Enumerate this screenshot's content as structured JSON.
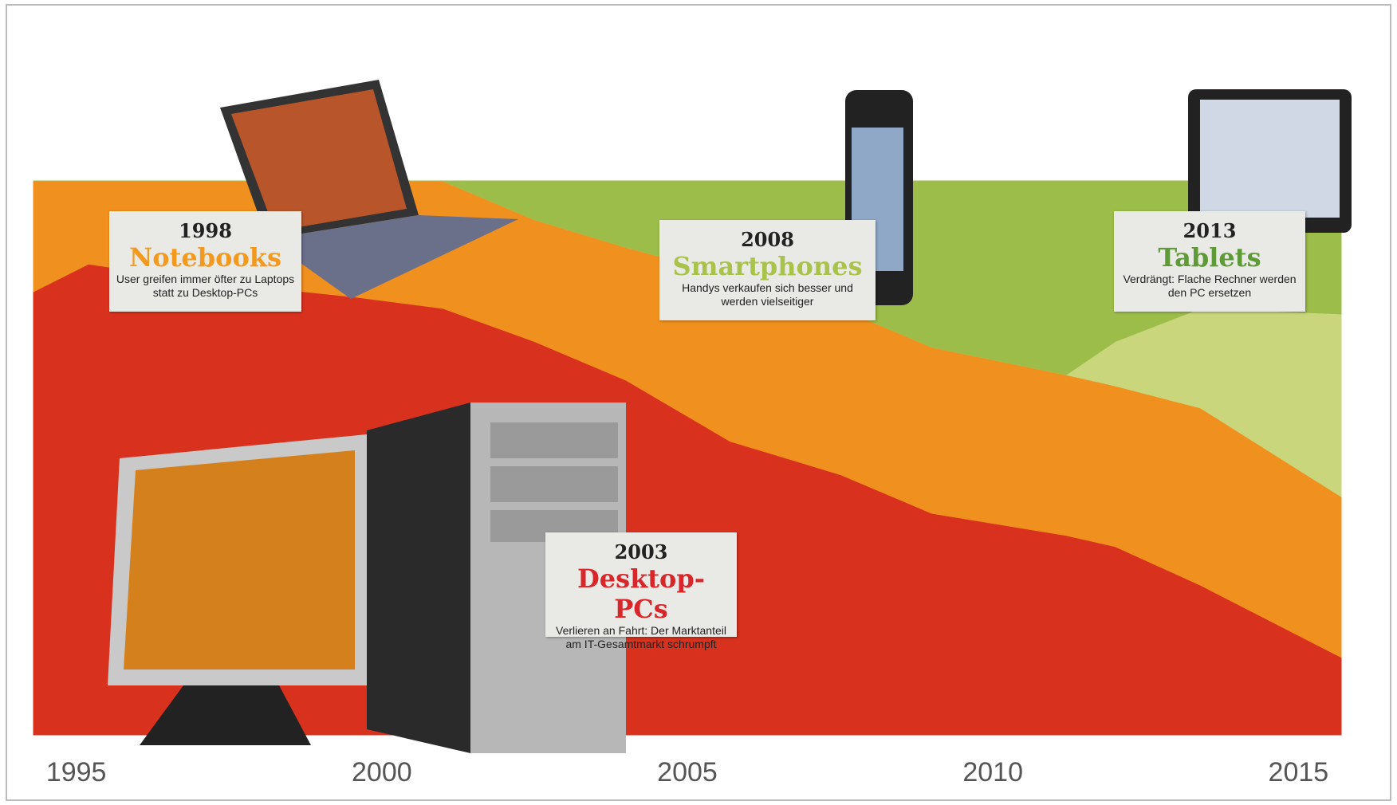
{
  "chart_data": {
    "type": "stacked_area",
    "x": [
      1994.3,
      1995.2,
      1997,
      1999.6,
      2001,
      2002.5,
      2004,
      2005.7,
      2007.5,
      2009,
      2011.2,
      2012,
      2013.4,
      2015.7
    ],
    "xlim": [
      1994.3,
      2015.7
    ],
    "xticks": [
      1995,
      2000,
      2005,
      2010,
      2015
    ],
    "ylim": [
      0,
      100
    ],
    "series": [
      {
        "name": "Desktop-PCs",
        "color": "#d8321f",
        "values": [
          80,
          85,
          82,
          79,
          77,
          71,
          64,
          53,
          47,
          40,
          36,
          34,
          27,
          14
        ],
        "callout": {
          "year": "2003",
          "text": "Verlieren an Fahrt: Der Marktanteil am IT-Gesamtmarkt schrumpft"
        }
      },
      {
        "name": "Notebooks",
        "color": "#f0901f",
        "values": [
          20,
          15,
          18,
          21,
          23,
          22,
          24,
          30,
          30,
          30,
          29,
          29,
          32,
          29
        ],
        "callout": {
          "year": "1998",
          "text": "User greifen immer öfter zu Laptops statt zu Desktop-PCs"
        }
      },
      {
        "name": "Tablets",
        "color": "#c9d67c",
        "values": [
          0,
          0,
          0,
          0,
          0,
          0,
          0,
          0,
          0,
          0,
          0,
          8,
          18,
          33
        ],
        "callout": {
          "year": "2013",
          "text": "Verdrängt: Flache Rechner werden den PC ersetzen"
        }
      },
      {
        "name": "Smartphones",
        "color": "#9dbd4a",
        "values": [
          0,
          0,
          0,
          0,
          0,
          7,
          12,
          17,
          23,
          30,
          35,
          29,
          23,
          24
        ],
        "callout": {
          "year": "2008",
          "text": "Handys verkaufen sich besser und werden vielseitiger"
        }
      }
    ]
  }
}
